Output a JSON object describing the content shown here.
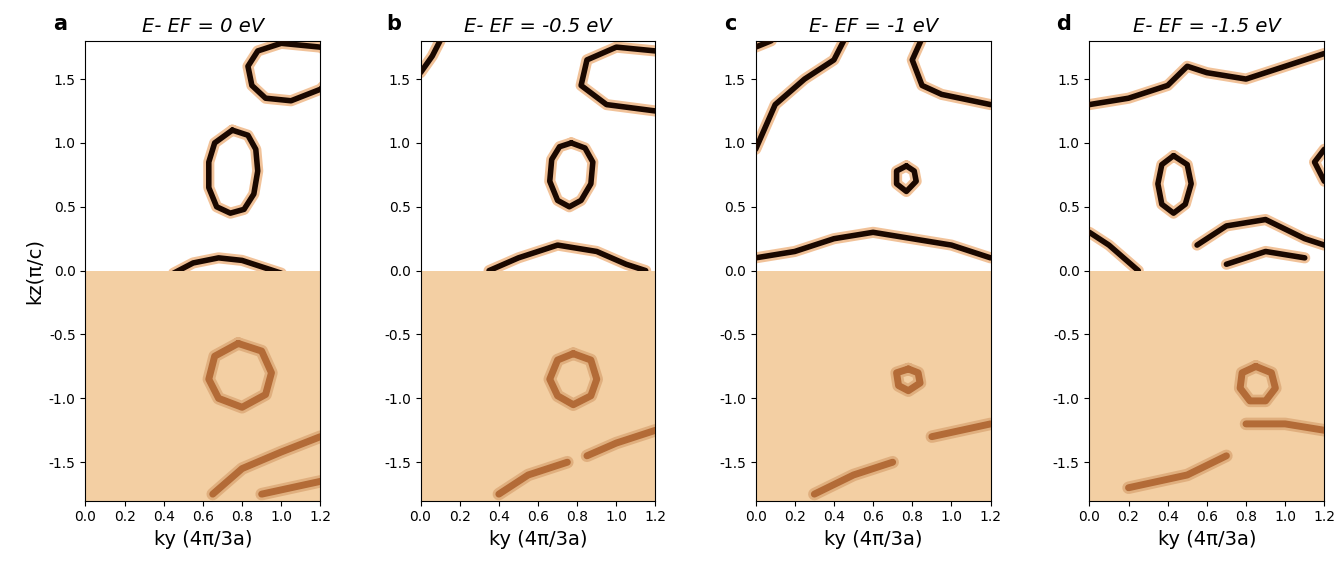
{
  "chart_data": [
    {
      "type": "contour",
      "label": "a",
      "title": "E- EF = 0 eV",
      "xlabel": "ky (4π/3a)",
      "ylabel": "kz(π/c)",
      "xlim": [
        0.0,
        1.2
      ],
      "ylim": [
        -1.8,
        1.8
      ],
      "xticks": [
        0.0,
        0.2,
        0.4,
        0.6,
        0.8,
        1.0,
        1.2
      ],
      "yticks": [
        -1.5,
        -1.0,
        -0.5,
        0.0,
        0.5,
        1.0,
        1.5
      ],
      "calculation": {
        "kz_range": [
          0.0,
          1.8
        ],
        "curves": [
          {
            "x": [
              0.75,
              0.83,
              0.87,
              0.88,
              0.86,
              0.81,
              0.74,
              0.67,
              0.63,
              0.63,
              0.66,
              0.75
            ],
            "y": [
              1.1,
              1.06,
              0.95,
              0.78,
              0.6,
              0.48,
              0.45,
              0.5,
              0.65,
              0.85,
              1.0,
              1.1
            ]
          },
          {
            "x": [
              1.25,
              1.2,
              1.0,
              0.88,
              0.83,
              0.85,
              0.92,
              1.05,
              1.2,
              1.25
            ],
            "y": [
              1.7,
              1.75,
              1.78,
              1.72,
              1.6,
              1.45,
              1.35,
              1.33,
              1.42,
              1.5
            ]
          },
          {
            "x": [
              0.45,
              0.55,
              0.68,
              0.8,
              0.92,
              1.0
            ],
            "y": [
              -0.02,
              0.06,
              0.1,
              0.08,
              0.02,
              -0.02
            ]
          }
        ]
      },
      "measurement": {
        "kz_range": [
          -1.8,
          0.0
        ],
        "curves": [
          {
            "x": [
              0.78,
              0.9,
              0.95,
              0.92,
              0.8,
              0.68,
              0.63,
              0.66,
              0.78
            ],
            "y": [
              -0.57,
              -0.63,
              -0.8,
              -0.97,
              -1.07,
              -1.0,
              -0.85,
              -0.67,
              -0.57
            ]
          },
          {
            "x": [
              0.65,
              0.8,
              1.0,
              1.2
            ],
            "y": [
              -1.75,
              -1.55,
              -1.42,
              -1.3
            ]
          },
          {
            "x": [
              0.9,
              1.05,
              1.2
            ],
            "y": [
              -1.75,
              -1.7,
              -1.65
            ]
          }
        ]
      }
    },
    {
      "type": "contour",
      "label": "b",
      "title": "E- EF = -0.5 eV",
      "xlabel": "ky (4π/3a)",
      "xlim": [
        0.0,
        1.2
      ],
      "ylim": [
        -1.8,
        1.8
      ],
      "xticks": [
        0.0,
        0.2,
        0.4,
        0.6,
        0.8,
        1.0,
        1.2
      ],
      "yticks": [
        -1.5,
        -1.0,
        -0.5,
        0.0,
        0.5,
        1.0,
        1.5
      ],
      "calculation": {
        "kz_range": [
          0.0,
          1.8
        ],
        "curves": [
          {
            "x": [
              0.77,
              0.84,
              0.88,
              0.87,
              0.82,
              0.76,
              0.7,
              0.66,
              0.67,
              0.71,
              0.77
            ],
            "y": [
              1.0,
              0.96,
              0.85,
              0.68,
              0.55,
              0.5,
              0.55,
              0.7,
              0.87,
              0.97,
              1.0
            ]
          },
          {
            "x": [
              1.2,
              0.95,
              0.82,
              0.85,
              1.0,
              1.2
            ],
            "y": [
              1.25,
              1.3,
              1.45,
              1.65,
              1.75,
              1.72
            ]
          },
          {
            "x": [
              0.0,
              0.06,
              0.1
            ],
            "y": [
              1.55,
              1.68,
              1.8
            ]
          },
          {
            "x": [
              0.35,
              0.5,
              0.7,
              0.9,
              1.05,
              1.15
            ],
            "y": [
              0.0,
              0.1,
              0.2,
              0.15,
              0.05,
              0.0
            ]
          }
        ]
      },
      "measurement": {
        "kz_range": [
          -1.8,
          0.0
        ],
        "curves": [
          {
            "x": [
              0.78,
              0.87,
              0.9,
              0.87,
              0.78,
              0.7,
              0.66,
              0.7,
              0.78
            ],
            "y": [
              -0.65,
              -0.7,
              -0.85,
              -0.98,
              -1.05,
              -0.98,
              -0.85,
              -0.7,
              -0.65
            ]
          },
          {
            "x": [
              0.85,
              1.0,
              1.2
            ],
            "y": [
              -1.45,
              -1.35,
              -1.25
            ]
          },
          {
            "x": [
              0.4,
              0.55,
              0.75
            ],
            "y": [
              -1.75,
              -1.6,
              -1.5
            ]
          }
        ]
      }
    },
    {
      "type": "contour",
      "label": "c",
      "title": "E- EF = -1 eV",
      "xlabel": "ky (4π/3a)",
      "xlim": [
        0.0,
        1.2
      ],
      "ylim": [
        -1.8,
        1.8
      ],
      "xticks": [
        0.0,
        0.2,
        0.4,
        0.6,
        0.8,
        1.0,
        1.2
      ],
      "yticks": [
        -1.5,
        -1.0,
        -0.5,
        0.0,
        0.5,
        1.0,
        1.5
      ],
      "calculation": {
        "kz_range": [
          0.0,
          1.8
        ],
        "curves": [
          {
            "x": [
              0.77,
              0.81,
              0.82,
              0.77,
              0.72,
              0.72,
              0.77
            ],
            "y": [
              0.82,
              0.78,
              0.7,
              0.62,
              0.68,
              0.78,
              0.82
            ]
          },
          {
            "x": [
              0.85,
              0.8,
              0.85,
              0.95,
              1.2
            ],
            "y": [
              1.82,
              1.65,
              1.45,
              1.38,
              1.3
            ]
          },
          {
            "x": [
              0.0,
              0.1,
              0.25,
              0.4,
              0.45
            ],
            "y": [
              0.95,
              1.3,
              1.5,
              1.65,
              1.8
            ]
          },
          {
            "x": [
              0.0,
              0.08
            ],
            "y": [
              1.75,
              1.8
            ]
          },
          {
            "x": [
              0.0,
              0.2,
              0.4,
              0.6,
              0.8,
              1.0,
              1.2
            ],
            "y": [
              0.1,
              0.15,
              0.25,
              0.3,
              0.25,
              0.2,
              0.1
            ]
          }
        ]
      },
      "measurement": {
        "kz_range": [
          -1.8,
          0.0
        ],
        "curves": [
          {
            "x": [
              0.78,
              0.83,
              0.84,
              0.78,
              0.73,
              0.72,
              0.78
            ],
            "y": [
              -0.77,
              -0.8,
              -0.88,
              -0.94,
              -0.9,
              -0.8,
              -0.77
            ]
          },
          {
            "x": [
              0.9,
              1.2
            ],
            "y": [
              -1.3,
              -1.2
            ]
          },
          {
            "x": [
              0.3,
              0.5,
              0.7
            ],
            "y": [
              -1.75,
              -1.6,
              -1.5
            ]
          }
        ]
      }
    },
    {
      "type": "contour",
      "label": "d",
      "title": "E- EF = -1.5 eV",
      "xlabel": "ky (4π/3a)",
      "xlim": [
        0.0,
        1.2
      ],
      "ylim": [
        -1.8,
        1.8
      ],
      "xticks": [
        0.0,
        0.2,
        0.4,
        0.6,
        0.8,
        1.0,
        1.2
      ],
      "yticks": [
        -1.5,
        -1.0,
        -0.5,
        0.0,
        0.5,
        1.0,
        1.5
      ],
      "calculation": {
        "kz_range": [
          0.0,
          1.8
        ],
        "curves": [
          {
            "x": [
              0.43,
              0.5,
              0.52,
              0.49,
              0.43,
              0.37,
              0.35,
              0.37,
              0.43
            ],
            "y": [
              0.9,
              0.83,
              0.68,
              0.52,
              0.45,
              0.52,
              0.68,
              0.83,
              0.9
            ]
          },
          {
            "x": [
              0.0,
              0.2,
              0.4,
              0.5,
              0.6,
              0.8,
              1.0,
              1.2
            ],
            "y": [
              1.3,
              1.35,
              1.45,
              1.6,
              1.55,
              1.5,
              1.6,
              1.7
            ]
          },
          {
            "x": [
              1.2,
              1.15,
              1.2
            ],
            "y": [
              0.95,
              0.85,
              0.7
            ]
          },
          {
            "x": [
              0.55,
              0.7,
              0.9,
              1.1,
              1.2
            ],
            "y": [
              0.2,
              0.35,
              0.4,
              0.25,
              0.2
            ]
          },
          {
            "x": [
              0.7,
              0.9,
              1.1
            ],
            "y": [
              0.05,
              0.15,
              0.1
            ]
          },
          {
            "x": [
              0.25,
              0.1,
              0.0
            ],
            "y": [
              0.0,
              0.2,
              0.3
            ]
          }
        ]
      },
      "measurement": {
        "kz_range": [
          -1.8,
          0.0
        ],
        "curves": [
          {
            "x": [
              0.2,
              0.5,
              0.7
            ],
            "y": [
              -1.7,
              -1.6,
              -1.45
            ]
          },
          {
            "x": [
              0.8,
              1.0,
              1.2
            ],
            "y": [
              -1.2,
              -1.2,
              -1.25
            ]
          },
          {
            "x": [
              0.85,
              0.93,
              0.95,
              0.9,
              0.82,
              0.77,
              0.78,
              0.85
            ],
            "y": [
              -0.75,
              -0.8,
              -0.92,
              -1.02,
              -1.02,
              -0.92,
              -0.8,
              -0.75
            ]
          }
        ]
      }
    }
  ]
}
